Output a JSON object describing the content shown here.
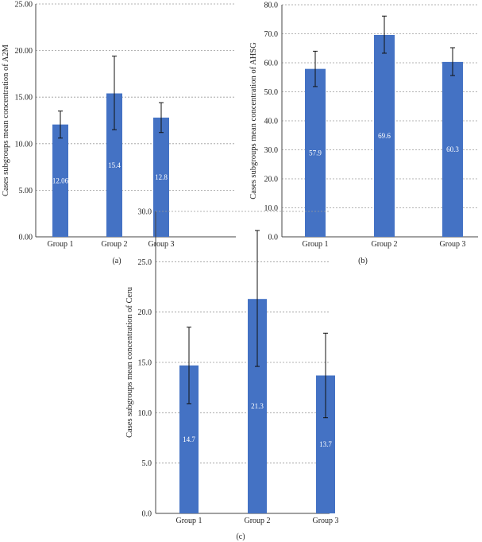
{
  "chart_data": [
    {
      "type": "bar",
      "panel_label": "(a)",
      "categories": [
        "Group 1",
        "Group 2",
        "Group 3"
      ],
      "values": [
        12.06,
        15.4,
        12.8
      ],
      "value_labels": [
        "12.06",
        "15.4",
        "12.8"
      ],
      "error_low": [
        10.6,
        11.5,
        11.2
      ],
      "error_high": [
        13.5,
        19.4,
        14.4
      ],
      "ylabel": "Cases subgroups mean concentration of A2M",
      "xlabel": "",
      "ylim": [
        0,
        25
      ],
      "yticks": [
        "0.00",
        "5.00",
        "10.00",
        "15.00",
        "20.00",
        "25.00"
      ],
      "grid": true,
      "color": "#4472c4"
    },
    {
      "type": "bar",
      "panel_label": "(b)",
      "categories": [
        "Group 1",
        "Group 2",
        "Group 3"
      ],
      "values": [
        57.9,
        69.6,
        60.3
      ],
      "value_labels": [
        "57.9",
        "69.6",
        "60.3"
      ],
      "error_low": [
        51.8,
        63.3,
        55.6
      ],
      "error_high": [
        64.0,
        76.1,
        65.2
      ],
      "ylabel": "Cases subgroups mean concentration of AHSG",
      "xlabel": "",
      "ylim": [
        0,
        80
      ],
      "yticks": [
        "0.0",
        "10.0",
        "20.0",
        "30.0",
        "40.0",
        "50.0",
        "60.0",
        "70.0",
        "80.0"
      ],
      "grid": true,
      "color": "#4472c4"
    },
    {
      "type": "bar",
      "panel_label": "(c)",
      "categories": [
        "Group 1",
        "Group 2",
        "Group 3"
      ],
      "values": [
        14.7,
        21.3,
        13.7
      ],
      "value_labels": [
        "14.7",
        "21.3",
        "13.7"
      ],
      "error_low": [
        10.9,
        14.6,
        9.5
      ],
      "error_high": [
        18.5,
        28.1,
        17.9
      ],
      "ylabel": "Cases subgroups mean concentration of Ceru",
      "xlabel": "",
      "ylim": [
        0,
        30
      ],
      "yticks": [
        "0.0",
        "5.0",
        "10.0",
        "15.0",
        "20.0",
        "25.0",
        "30.0"
      ],
      "grid": true,
      "color": "#4472c4"
    }
  ]
}
